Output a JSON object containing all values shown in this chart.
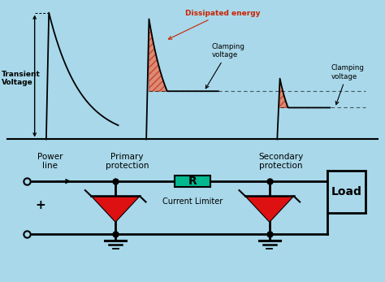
{
  "bg_color": "#a8d8ea",
  "line_color": "#000000",
  "clamp_level": 0.38,
  "clamp_level2": 0.25,
  "hatch_color": "#e05020",
  "green_box_color": "#00b890",
  "red_triangle_color": "#dd1111",
  "annotations": {
    "transient_voltage": "Transient\nVoltage",
    "dissipated_energy": "Dissipated energy",
    "clamping_voltage1": "Clamping\nvoltage",
    "clamping_voltage2": "Clamping\nvoltage",
    "power_line": "Power\nline",
    "primary_protection": "Primary\nprotection",
    "secondary_protection": "Secondary\nprotection",
    "current_limiter": "Current Limiter",
    "resistor_label": "R",
    "load_label": "Load"
  }
}
